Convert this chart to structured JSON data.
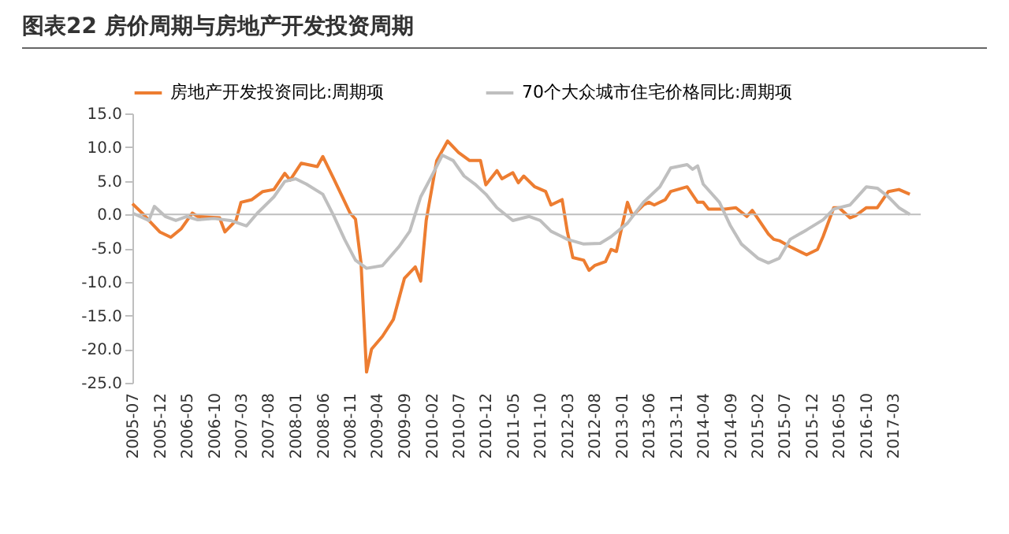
{
  "chart_data": {
    "type": "line",
    "title": "图表22 房价周期与房地产开发投资周期",
    "legend": "top",
    "marker": "none",
    "line_style": "solid",
    "grid": false,
    "xlim": [
      "2005-07",
      "2017-08"
    ],
    "xticks": [
      "2005-07",
      "2005-12",
      "2006-05",
      "2006-10",
      "2007-03",
      "2007-08",
      "2008-01",
      "2008-06",
      "2008-11",
      "2009-04",
      "2009-09",
      "2010-02",
      "2010-07",
      "2010-12",
      "2011-05",
      "2011-10",
      "2012-03",
      "2012-08",
      "2013-01",
      "2013-06",
      "2013-11",
      "2014-04",
      "2014-09",
      "2015-02",
      "2015-07",
      "2015-12",
      "2016-05",
      "2016-10",
      "2017-03"
    ],
    "ylim": [
      -25,
      15
    ],
    "yticks": [
      {
        "value": -25,
        "label": "-25.0"
      },
      {
        "value": -20,
        "label": "-20.0"
      },
      {
        "value": -15,
        "label": "-15.0"
      },
      {
        "value": -10,
        "label": "-10.0"
      },
      {
        "value": -5,
        "label": "-5.0"
      },
      {
        "value": 0,
        "label": "0.0"
      },
      {
        "value": 5,
        "label": "5.0"
      },
      {
        "value": 10,
        "label": "10.0"
      },
      {
        "value": 15,
        "label": "15.0"
      }
    ],
    "ref_lines": [
      {
        "axis": "y",
        "value": 0,
        "color": "#bfbfbf"
      }
    ],
    "series": [
      {
        "name": "房地产开发投资同比:周期项",
        "color": "#ed7d31",
        "x": [
          "2005-07",
          "2005-09",
          "2005-10",
          "2005-12",
          "2006-02",
          "2006-04",
          "2006-06",
          "2006-07",
          "2006-11",
          "2006-12",
          "2007-02",
          "2007-03",
          "2007-05",
          "2007-07",
          "2007-09",
          "2007-11",
          "2007-12",
          "2008-02",
          "2008-05",
          "2008-06",
          "2008-08",
          "2008-11",
          "2008-12",
          "2009-01",
          "2009-02",
          "2009-03",
          "2009-05",
          "2009-07",
          "2009-09",
          "2009-11",
          "2009-12",
          "2010-01",
          "2010-03",
          "2010-05",
          "2010-07",
          "2010-09",
          "2010-11",
          "2010-12",
          "2011-02",
          "2011-03",
          "2011-05",
          "2011-06",
          "2011-07",
          "2011-09",
          "2011-11",
          "2011-12",
          "2012-02",
          "2012-03",
          "2012-04",
          "2012-06",
          "2012-07",
          "2012-08",
          "2012-10",
          "2012-11",
          "2012-12",
          "2013-02",
          "2013-03",
          "2013-05",
          "2013-06",
          "2013-07",
          "2013-09",
          "2013-10",
          "2014-01",
          "2014-03",
          "2014-04",
          "2014-05",
          "2014-08",
          "2014-10",
          "2014-12",
          "2015-01",
          "2015-04",
          "2015-05",
          "2015-06",
          "2015-08",
          "2015-11",
          "2016-01",
          "2016-02",
          "2016-04",
          "2016-05",
          "2016-07",
          "2016-08",
          "2016-10",
          "2016-12",
          "2017-02",
          "2017-04",
          "2017-06"
        ],
        "values": [
          1.6,
          0,
          -0.9,
          -2.6,
          -3.4,
          -2.1,
          0.2,
          -0.3,
          -0.5,
          -2.6,
          -0.9,
          1.8,
          2.2,
          3.4,
          3.7,
          6.1,
          5.1,
          7.6,
          7.1,
          8.6,
          5.3,
          0.2,
          -0.7,
          -7.2,
          -23.4,
          -20,
          -18.1,
          -15.6,
          -9.5,
          -7.8,
          -9.9,
          -0.9,
          8,
          10.9,
          9.2,
          8,
          8,
          4.4,
          6.5,
          5.3,
          6.2,
          4.7,
          5.7,
          4.1,
          3.4,
          1.4,
          2.2,
          -2.5,
          -6.4,
          -6.8,
          -8.3,
          -7.6,
          -7,
          -5.2,
          -5.5,
          1.8,
          -0.2,
          1.4,
          1.8,
          1.4,
          2.2,
          3.4,
          4.1,
          1.8,
          1.8,
          0.8,
          0.8,
          1,
          -0.3,
          0.6,
          -2.9,
          -3.7,
          -3.9,
          -4.8,
          -6,
          -5.2,
          -3.3,
          1,
          1,
          -0.5,
          -0.2,
          1,
          1,
          3.4,
          3.7,
          3
        ]
      },
      {
        "name": "70个大众城市住宅价格同比:周期项",
        "color": "#bfbfbf",
        "x": [
          "2005-07",
          "2005-10",
          "2005-11",
          "2006-01",
          "2006-03",
          "2006-05",
          "2006-07",
          "2006-10",
          "2007-01",
          "2007-04",
          "2007-06",
          "2007-09",
          "2007-11",
          "2008-01",
          "2008-03",
          "2008-06",
          "2008-08",
          "2008-10",
          "2008-12",
          "2009-02",
          "2009-05",
          "2009-08",
          "2009-10",
          "2009-12",
          "2010-02",
          "2010-04",
          "2010-06",
          "2010-08",
          "2010-10",
          "2010-12",
          "2011-02",
          "2011-05",
          "2011-08",
          "2011-10",
          "2011-12",
          "2012-02",
          "2012-03",
          "2012-06",
          "2012-09",
          "2012-11",
          "2013-02",
          "2013-05",
          "2013-08",
          "2013-10",
          "2014-01",
          "2014-02",
          "2014-03",
          "2014-04",
          "2014-07",
          "2014-09",
          "2014-11",
          "2015-02",
          "2015-04",
          "2015-06",
          "2015-08",
          "2015-11",
          "2016-02",
          "2016-04",
          "2016-07",
          "2016-10",
          "2016-12",
          "2017-02",
          "2017-04",
          "2017-06"
        ],
        "values": [
          0.2,
          -0.9,
          1.2,
          -0.3,
          -0.9,
          -0.3,
          -0.8,
          -0.6,
          -0.9,
          -1.7,
          0.2,
          2.6,
          4.9,
          5.3,
          4.5,
          3,
          -0.2,
          -3.7,
          -6.8,
          -8,
          -7.6,
          -4.8,
          -2.5,
          2.6,
          5.7,
          8.8,
          8,
          5.7,
          4.5,
          3,
          1,
          -0.9,
          -0.3,
          -0.9,
          -2.5,
          -3.3,
          -3.7,
          -4.4,
          -4.3,
          -3.3,
          -1.3,
          1.8,
          4.1,
          6.9,
          7.4,
          6.7,
          7.2,
          4.5,
          1.8,
          -1.7,
          -4.4,
          -6.5,
          -7.2,
          -6.5,
          -3.7,
          -2.3,
          -0.8,
          0.8,
          1.4,
          4.1,
          3.9,
          2.6,
          1,
          0
        ]
      }
    ]
  }
}
